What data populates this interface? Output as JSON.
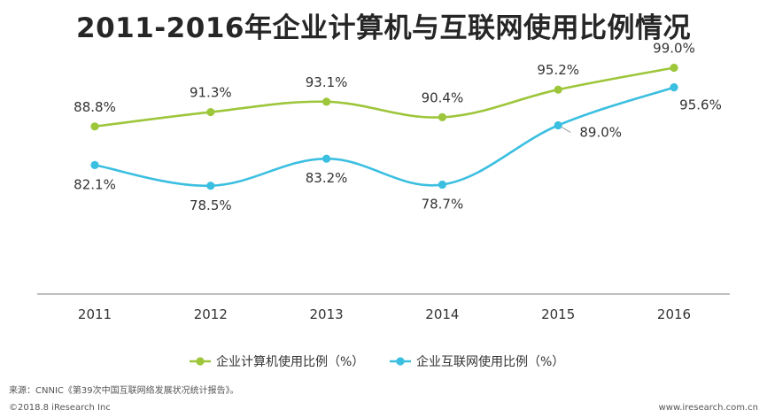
{
  "chart_data": {
    "type": "line",
    "title": "2011-2016年企业计算机与互联网使用比例情况",
    "categories": [
      "2011",
      "2012",
      "2013",
      "2014",
      "2015",
      "2016"
    ],
    "ylim": [
      60,
      100
    ],
    "grid": false,
    "legend_position": "bottom",
    "series": [
      {
        "name": "企业计算机使用比例（%）",
        "color": "#9dc63b",
        "values": [
          88.8,
          91.3,
          93.1,
          90.4,
          95.2,
          99.0
        ],
        "labels": [
          "88.8%",
          "91.3%",
          "93.1%",
          "90.4%",
          "95.2%",
          "99.0%"
        ]
      },
      {
        "name": "企业互联网使用比例（%）",
        "color": "#3bbfe0",
        "values": [
          82.1,
          78.5,
          83.2,
          78.7,
          89.0,
          95.6
        ],
        "labels": [
          "82.1%",
          "78.5%",
          "83.2%",
          "78.7%",
          "89.0%",
          "95.6%"
        ]
      }
    ]
  },
  "footer": {
    "source": "来源：CNNIC《第39次中国互联网络发展状况统计报告》。",
    "copyright": "©2018.8 iResearch Inc",
    "website": "www.iresearch.com.cn"
  }
}
